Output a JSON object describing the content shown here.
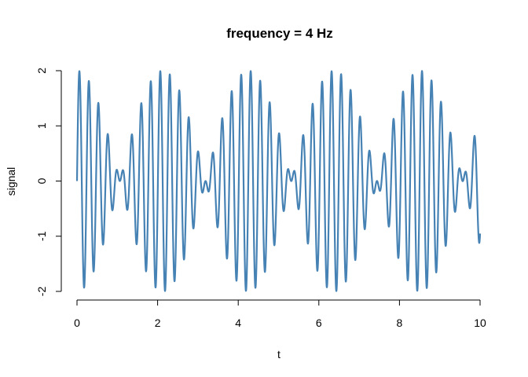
{
  "chart_data": {
    "type": "line",
    "title": "frequency =  4 Hz",
    "xlabel": "t",
    "ylabel": "signal",
    "xlim": [
      0,
      10
    ],
    "ylim": [
      -2,
      2
    ],
    "x_ticks": [
      0,
      2,
      4,
      6,
      8,
      10
    ],
    "x_tick_labels": [
      "0",
      "2",
      "4",
      "6",
      "8",
      "10"
    ],
    "y_ticks": [
      -2,
      -1,
      0,
      1,
      2
    ],
    "y_tick_labels": [
      "-2",
      "-1",
      "0",
      "1",
      "2"
    ],
    "grid": false,
    "series": [
      {
        "color": "#4682b4",
        "x_range": [
          0,
          10
        ],
        "signal": "sin(2*pi*4*t) + sin(2*pi*4.47*t)",
        "components": [
          {
            "amplitude": 1,
            "frequency_hz": 4
          },
          {
            "amplitude": 1,
            "frequency_hz": 4.47
          }
        ]
      }
    ]
  }
}
